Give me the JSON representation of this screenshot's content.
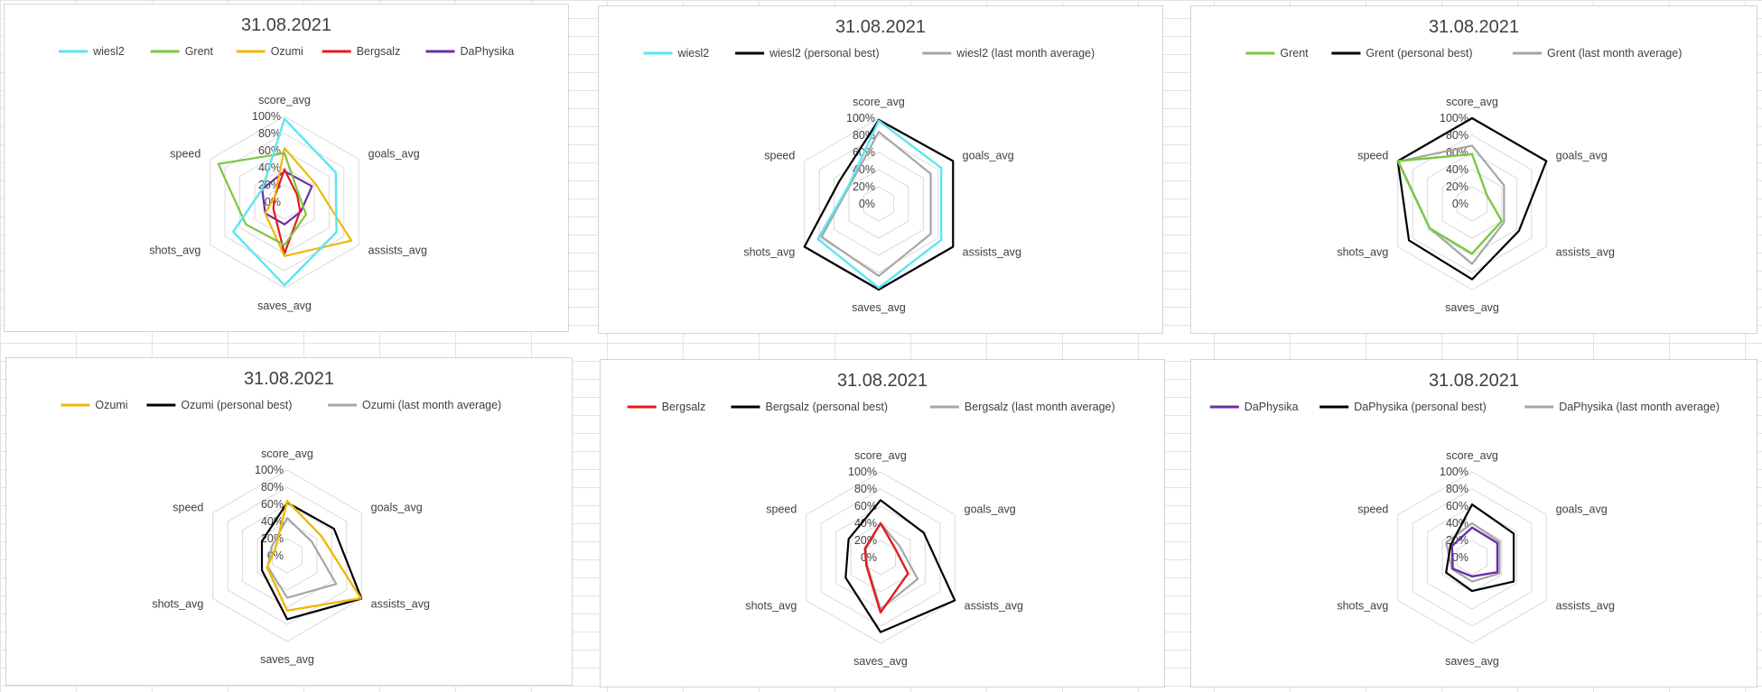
{
  "colors": {
    "wiesl2": "#5ce6ee",
    "Grent": "#7dc740",
    "Ozumi": "#f2b707",
    "Bergsalz": "#e31c1c",
    "DaPhysika": "#6a2ea8",
    "personal_best": "#000000",
    "last_month_average": "#a6a6a6",
    "grid": "#d9d9d9"
  },
  "chart_data": [
    {
      "type": "radar",
      "title": "31.08.2021",
      "axes": [
        "score_avg",
        "goals_avg",
        "assists_avg",
        "saves_avg",
        "shots_avg",
        "speed"
      ],
      "rlim": [
        0,
        100
      ],
      "ticks": [
        "100%",
        "80%",
        "60%",
        "40%",
        "20%",
        "0%"
      ],
      "grid": true,
      "legend_position": "top",
      "series": [
        {
          "name": "wiesl2",
          "color": "#5ce6ee",
          "values": [
            97,
            69,
            70,
            97,
            69,
            30
          ]
        },
        {
          "name": "Grent",
          "color": "#7dc740",
          "values": [
            57,
            19,
            29,
            50,
            52,
            89
          ]
        },
        {
          "name": "Ozumi",
          "color": "#f2b707",
          "values": [
            63,
            42,
            90,
            63,
            26,
            13
          ]
        },
        {
          "name": "Bergsalz",
          "color": "#e31c1c",
          "values": [
            38,
            17,
            21,
            60,
            15,
            13
          ]
        },
        {
          "name": "DaPhysika",
          "color": "#6a2ea8",
          "values": [
            36,
            37,
            22,
            26,
            26,
            30
          ]
        }
      ]
    },
    {
      "type": "radar",
      "title": "31.08.2021",
      "axes": [
        "score_avg",
        "goals_avg",
        "assists_avg",
        "saves_avg",
        "shots_avg",
        "speed"
      ],
      "rlim": [
        0,
        100
      ],
      "ticks": [
        "100%",
        "80%",
        "60%",
        "40%",
        "20%",
        "0%"
      ],
      "grid": true,
      "legend_position": "top",
      "series": [
        {
          "name": "wiesl2",
          "color": "#5ce6ee",
          "values": [
            97,
            84,
            84,
            98,
            82,
            41
          ]
        },
        {
          "name": "wiesl2 (personal best)",
          "color": "#000000",
          "values": [
            98,
            100,
            100,
            100,
            100,
            53
          ]
        },
        {
          "name": "wiesl2 (last month average)",
          "color": "#a6a6a6",
          "values": [
            84,
            70,
            70,
            84,
            77,
            40
          ]
        }
      ]
    },
    {
      "type": "radar",
      "title": "31.08.2021",
      "axes": [
        "score_avg",
        "goals_avg",
        "assists_avg",
        "saves_avg",
        "shots_avg",
        "speed"
      ],
      "rlim": [
        0,
        100
      ],
      "ticks": [
        "100%",
        "80%",
        "60%",
        "40%",
        "20%",
        "0%"
      ],
      "grid": true,
      "legend_position": "top",
      "series": [
        {
          "name": "Grent",
          "color": "#7dc740",
          "values": [
            58,
            20,
            40,
            58,
            57,
            100
          ]
        },
        {
          "name": "Grent (personal best)",
          "color": "#000000",
          "values": [
            100,
            100,
            63,
            88,
            85,
            100
          ]
        },
        {
          "name": "Grent (last month average)",
          "color": "#a6a6a6",
          "values": [
            68,
            43,
            43,
            70,
            57,
            99
          ]
        }
      ]
    },
    {
      "type": "radar",
      "title": "31.08.2021",
      "axes": [
        "score_avg",
        "goals_avg",
        "assists_avg",
        "saves_avg",
        "shots_avg",
        "speed"
      ],
      "rlim": [
        0,
        100
      ],
      "ticks": [
        "100%",
        "80%",
        "60%",
        "40%",
        "20%",
        "0%"
      ],
      "grid": true,
      "legend_position": "top",
      "series": [
        {
          "name": "Ozumi",
          "color": "#f2b707",
          "values": [
            64,
            46,
            99,
            64,
            27,
            16
          ]
        },
        {
          "name": "Ozumi (personal best)",
          "color": "#000000",
          "values": [
            62,
            63,
            100,
            74,
            34,
            34
          ]
        },
        {
          "name": "Ozumi (last month average)",
          "color": "#a6a6a6",
          "values": [
            44,
            33,
            66,
            49,
            26,
            21
          ]
        }
      ]
    },
    {
      "type": "radar",
      "title": "31.08.2021",
      "axes": [
        "score_avg",
        "goals_avg",
        "assists_avg",
        "saves_avg",
        "shots_avg",
        "speed"
      ],
      "rlim": [
        0,
        100
      ],
      "ticks": [
        "100%",
        "80%",
        "60%",
        "40%",
        "20%",
        "0%"
      ],
      "grid": true,
      "legend_position": "top",
      "series": [
        {
          "name": "Bergsalz",
          "color": "#e31c1c",
          "values": [
            40,
            20,
            37,
            64,
            19,
            21
          ]
        },
        {
          "name": "Bergsalz (personal best)",
          "color": "#000000",
          "values": [
            67,
            58,
            100,
            87,
            47,
            43
          ]
        },
        {
          "name": "Bergsalz (last month average)",
          "color": "#a6a6a6",
          "values": [
            40,
            26,
            50,
            60,
            18,
            20
          ]
        }
      ]
    },
    {
      "type": "radar",
      "title": "31.08.2021",
      "axes": [
        "score_avg",
        "goals_avg",
        "assists_avg",
        "saves_avg",
        "shots_avg",
        "speed"
      ],
      "rlim": [
        0,
        100
      ],
      "ticks": [
        "100%",
        "80%",
        "60%",
        "40%",
        "20%",
        "0%"
      ],
      "grid": true,
      "legend_position": "top",
      "series": [
        {
          "name": "DaPhysika",
          "color": "#6a2ea8",
          "values": [
            35,
            34,
            34,
            22,
            26,
            27
          ]
        },
        {
          "name": "DaPhysika (personal best)",
          "color": "#000000",
          "values": [
            62,
            56,
            56,
            39,
            35,
            29
          ]
        },
        {
          "name": "DaPhysika (last month average)",
          "color": "#a6a6a6",
          "values": [
            40,
            37,
            37,
            28,
            27,
            35
          ]
        }
      ]
    }
  ]
}
